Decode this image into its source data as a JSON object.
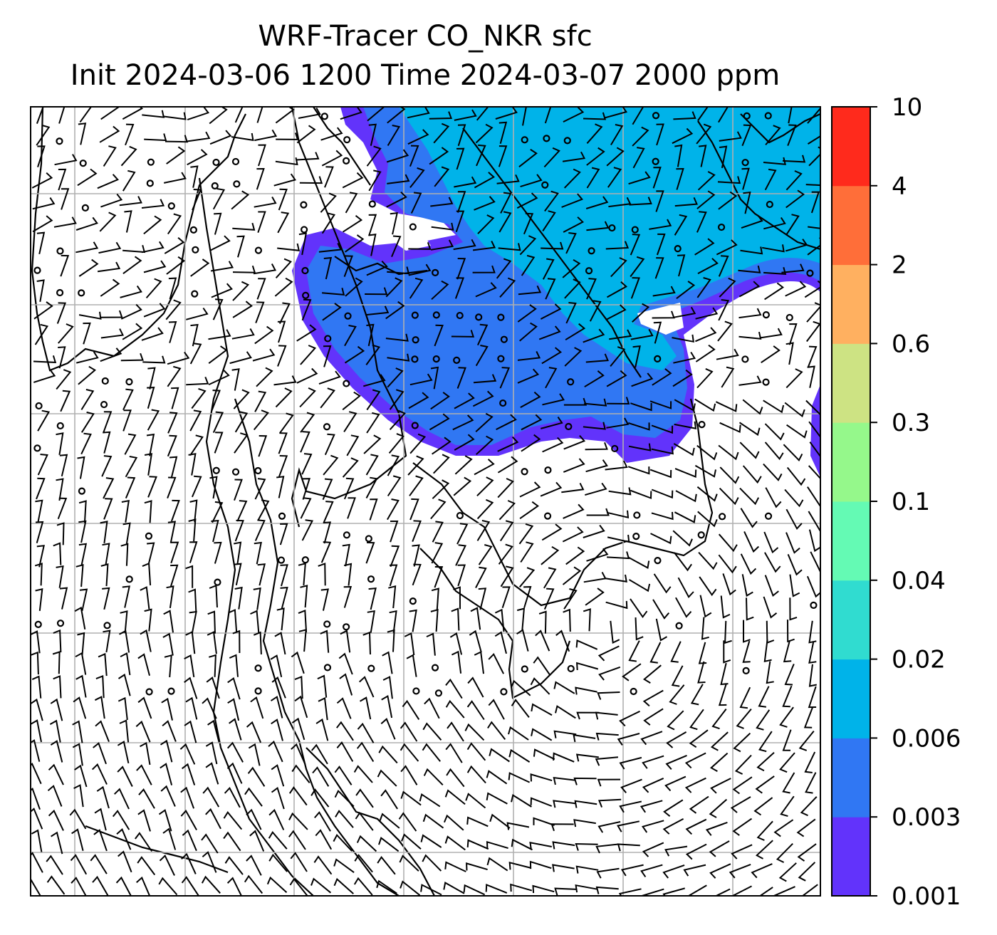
{
  "chart_data": {
    "type": "heatmap",
    "title": "WRF-Tracer CO_NKR sfc",
    "subtitle": "Init 2024-03-06 1200 Time 2024-03-07 2000 ppm",
    "xlabel": "",
    "ylabel": "",
    "grid": true,
    "legend": "colorbar-right",
    "colorbar": {
      "ticks": [
        "0.001",
        "0.003",
        "0.006",
        "0.02",
        "0.04",
        "0.1",
        "0.3",
        "0.6",
        "2",
        "4",
        "10"
      ],
      "levels": [
        0.001,
        0.003,
        0.006,
        0.02,
        0.04,
        0.1,
        0.3,
        0.6,
        2,
        4,
        10
      ],
      "colors": [
        "#6233fb",
        "#3077f3",
        "#00b3e9",
        "#30dcd0",
        "#64fab4",
        "#95f88b",
        "#cde383",
        "#ffb060",
        "#ff6e39",
        "#ff2a1c"
      ]
    },
    "field_fill": {
      "0.001-0.003": "#6233fb",
      "0.003-0.006": "#3077f3",
      "0.006-0.02": "#00b3e9"
    },
    "overlay": "wind barbs"
  }
}
